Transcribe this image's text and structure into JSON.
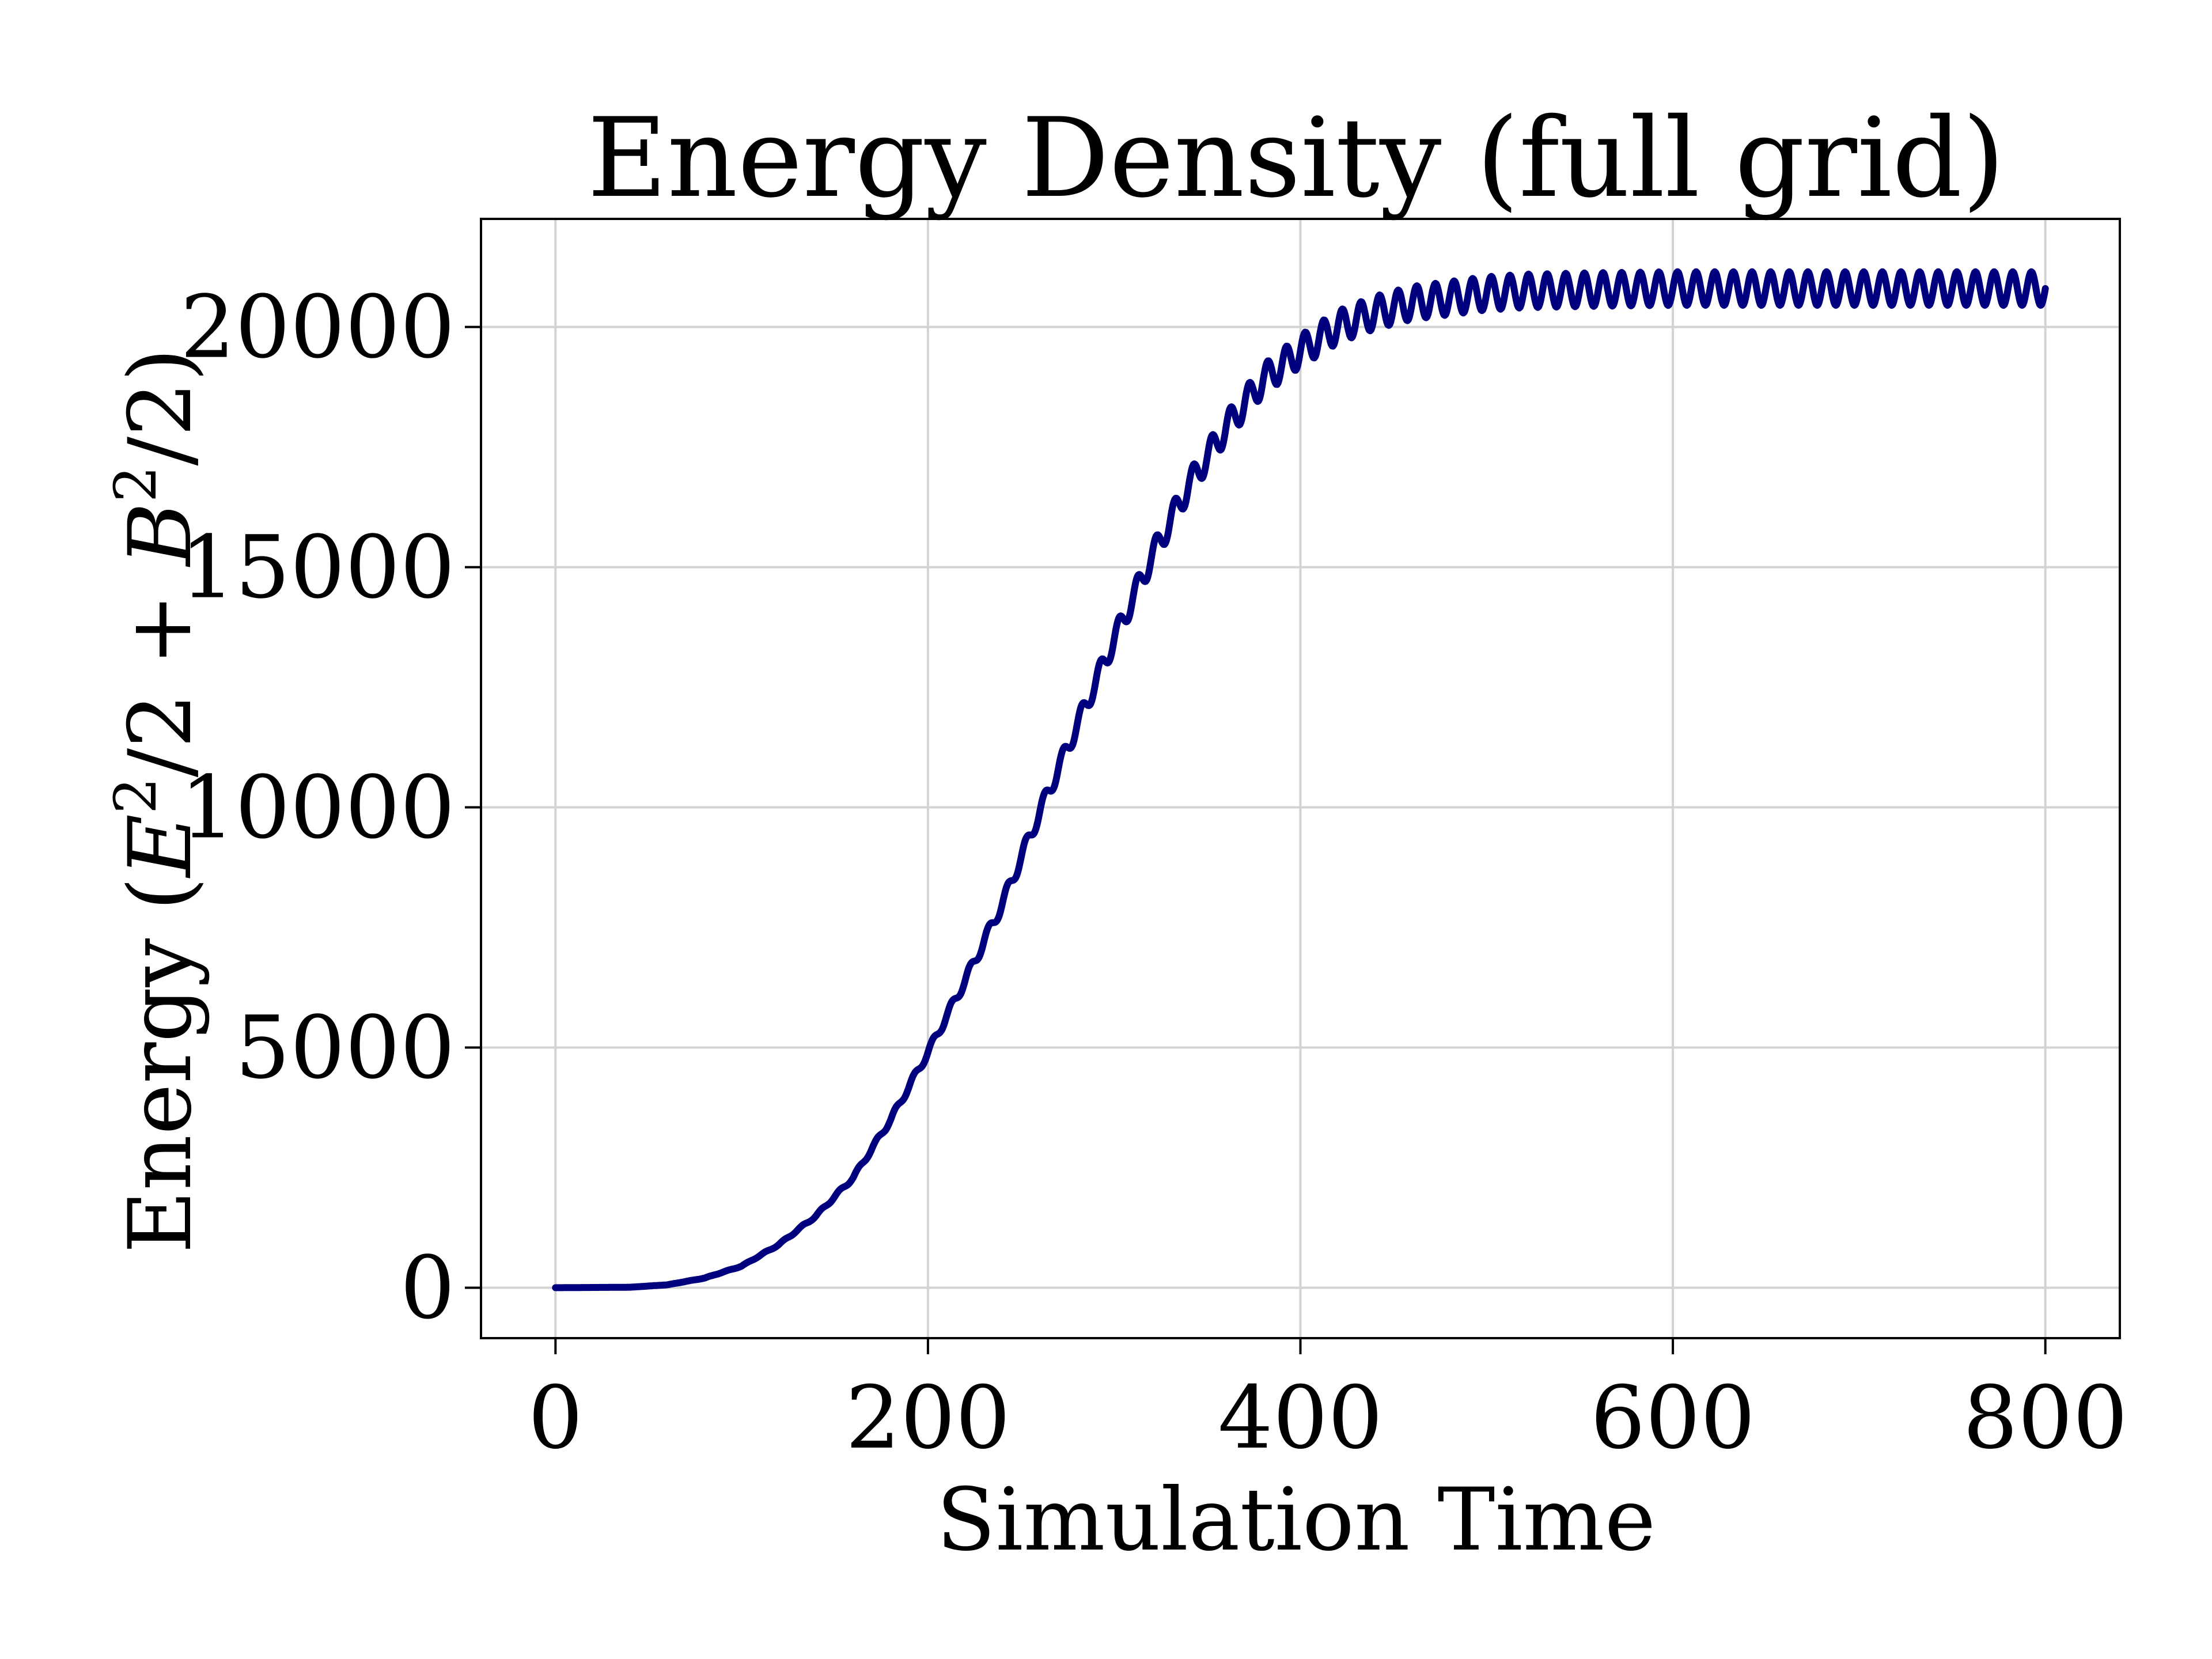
{
  "chart_data": {
    "type": "line",
    "title": "Energy Density (full grid)",
    "xlabel": "Simulation Time",
    "ylabel": {
      "prefix": "Energy (",
      "e_sym": "E",
      "sq": "2",
      "mid": "/2 + ",
      "b_sym": "B",
      "tail": "/2)"
    },
    "xlim": [
      -40,
      840
    ],
    "ylim": [
      -1050,
      22250
    ],
    "x_ticks": [
      0,
      200,
      400,
      600,
      800
    ],
    "x_tick_labels": [
      "0",
      "200",
      "400",
      "600",
      "800"
    ],
    "y_ticks": [
      0,
      5000,
      10000,
      15000,
      20000
    ],
    "y_tick_labels": [
      "0",
      "5000",
      "10000",
      "15000",
      "20000"
    ],
    "grid": true,
    "line_color": "#00007f",
    "grid_color": "#d3d3d3",
    "series": [
      {
        "x": [
          0,
          40,
          60,
          80,
          100,
          120,
          140,
          160,
          180,
          200,
          220,
          240,
          260,
          280,
          300,
          320,
          340,
          360,
          380,
          400,
          420,
          440,
          460,
          480,
          500,
          520,
          560,
          600,
          700,
          800
        ],
        "y": [
          0,
          10,
          60,
          200,
          450,
          900,
          1500,
          2300,
          3500,
          4900,
          6400,
          8000,
          9900,
          11700,
          13500,
          15200,
          16700,
          17900,
          18900,
          19500,
          20000,
          20300,
          20500,
          20600,
          20700,
          20750,
          20780,
          20800,
          20800,
          20800
        ],
        "oscillation": {
          "period": 10,
          "amplitude_max": 350
        }
      }
    ]
  }
}
